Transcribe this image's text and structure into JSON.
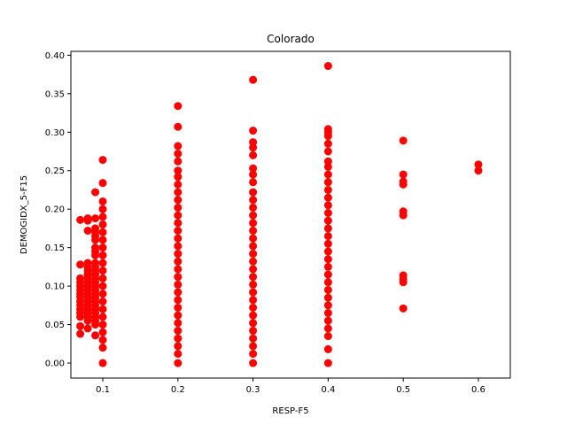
{
  "chart_data": {
    "type": "scatter",
    "title": "Colorado",
    "xlabel": "RESP-F5",
    "ylabel": "DEMOGIDX_5-F15",
    "xlim": [
      0.0575,
      0.6425
    ],
    "ylim": [
      -0.0195,
      0.405
    ],
    "xticks": [
      0.1,
      0.2,
      0.3,
      0.4,
      0.5,
      0.6
    ],
    "xtick_labels": [
      "0.1",
      "0.2",
      "0.3",
      "0.4",
      "0.5",
      "0.6"
    ],
    "yticks": [
      0.0,
      0.05,
      0.1,
      0.15,
      0.2,
      0.25,
      0.3,
      0.35,
      0.4
    ],
    "ytick_labels": [
      "0.00",
      "0.05",
      "0.10",
      "0.15",
      "0.20",
      "0.25",
      "0.30",
      "0.35",
      "0.40"
    ],
    "grid": false,
    "marker_color": "#ff0000",
    "series": [
      {
        "points": [
          [
            0.07,
            0.038
          ],
          [
            0.07,
            0.048
          ],
          [
            0.07,
            0.06
          ],
          [
            0.07,
            0.065
          ],
          [
            0.07,
            0.07
          ],
          [
            0.07,
            0.075
          ],
          [
            0.07,
            0.08
          ],
          [
            0.07,
            0.086
          ],
          [
            0.07,
            0.09
          ],
          [
            0.07,
            0.095
          ],
          [
            0.07,
            0.1
          ],
          [
            0.07,
            0.105
          ],
          [
            0.07,
            0.11
          ],
          [
            0.07,
            0.128
          ],
          [
            0.07,
            0.186
          ],
          [
            0.08,
            0.045
          ],
          [
            0.08,
            0.055
          ],
          [
            0.08,
            0.06
          ],
          [
            0.08,
            0.065
          ],
          [
            0.08,
            0.07
          ],
          [
            0.08,
            0.075
          ],
          [
            0.08,
            0.08
          ],
          [
            0.08,
            0.085
          ],
          [
            0.08,
            0.09
          ],
          [
            0.08,
            0.095
          ],
          [
            0.08,
            0.1
          ],
          [
            0.08,
            0.105
          ],
          [
            0.08,
            0.11
          ],
          [
            0.08,
            0.115
          ],
          [
            0.08,
            0.12
          ],
          [
            0.08,
            0.125
          ],
          [
            0.08,
            0.13
          ],
          [
            0.08,
            0.172
          ],
          [
            0.08,
            0.185
          ],
          [
            0.08,
            0.188
          ],
          [
            0.09,
            0.036
          ],
          [
            0.09,
            0.05
          ],
          [
            0.09,
            0.055
          ],
          [
            0.09,
            0.06
          ],
          [
            0.09,
            0.065
          ],
          [
            0.09,
            0.07
          ],
          [
            0.09,
            0.075
          ],
          [
            0.09,
            0.08
          ],
          [
            0.09,
            0.085
          ],
          [
            0.09,
            0.09
          ],
          [
            0.09,
            0.095
          ],
          [
            0.09,
            0.1
          ],
          [
            0.09,
            0.105
          ],
          [
            0.09,
            0.11
          ],
          [
            0.09,
            0.115
          ],
          [
            0.09,
            0.12
          ],
          [
            0.09,
            0.125
          ],
          [
            0.09,
            0.13
          ],
          [
            0.09,
            0.14
          ],
          [
            0.09,
            0.145
          ],
          [
            0.09,
            0.15
          ],
          [
            0.09,
            0.16
          ],
          [
            0.09,
            0.165
          ],
          [
            0.09,
            0.17
          ],
          [
            0.09,
            0.175
          ],
          [
            0.09,
            0.188
          ],
          [
            0.09,
            0.222
          ],
          [
            0.1,
            0.0
          ],
          [
            0.1,
            0.02
          ],
          [
            0.1,
            0.03
          ],
          [
            0.1,
            0.04
          ],
          [
            0.1,
            0.05
          ],
          [
            0.1,
            0.06
          ],
          [
            0.1,
            0.07
          ],
          [
            0.1,
            0.08
          ],
          [
            0.1,
            0.09
          ],
          [
            0.1,
            0.1
          ],
          [
            0.1,
            0.11
          ],
          [
            0.1,
            0.12
          ],
          [
            0.1,
            0.13
          ],
          [
            0.1,
            0.14
          ],
          [
            0.1,
            0.15
          ],
          [
            0.1,
            0.16
          ],
          [
            0.1,
            0.17
          ],
          [
            0.1,
            0.18
          ],
          [
            0.1,
            0.19
          ],
          [
            0.1,
            0.2
          ],
          [
            0.1,
            0.21
          ],
          [
            0.1,
            0.234
          ],
          [
            0.1,
            0.264
          ],
          [
            0.2,
            0.0
          ],
          [
            0.2,
            0.012
          ],
          [
            0.2,
            0.022
          ],
          [
            0.2,
            0.032
          ],
          [
            0.2,
            0.042
          ],
          [
            0.2,
            0.052
          ],
          [
            0.2,
            0.062
          ],
          [
            0.2,
            0.072
          ],
          [
            0.2,
            0.082
          ],
          [
            0.2,
            0.092
          ],
          [
            0.2,
            0.102
          ],
          [
            0.2,
            0.112
          ],
          [
            0.2,
            0.122
          ],
          [
            0.2,
            0.132
          ],
          [
            0.2,
            0.142
          ],
          [
            0.2,
            0.152
          ],
          [
            0.2,
            0.162
          ],
          [
            0.2,
            0.172
          ],
          [
            0.2,
            0.182
          ],
          [
            0.2,
            0.192
          ],
          [
            0.2,
            0.202
          ],
          [
            0.2,
            0.212
          ],
          [
            0.2,
            0.222
          ],
          [
            0.2,
            0.232
          ],
          [
            0.2,
            0.242
          ],
          [
            0.2,
            0.25
          ],
          [
            0.2,
            0.262
          ],
          [
            0.2,
            0.272
          ],
          [
            0.2,
            0.282
          ],
          [
            0.2,
            0.307
          ],
          [
            0.2,
            0.334
          ],
          [
            0.3,
            0.0
          ],
          [
            0.3,
            0.012
          ],
          [
            0.3,
            0.022
          ],
          [
            0.3,
            0.032
          ],
          [
            0.3,
            0.042
          ],
          [
            0.3,
            0.052
          ],
          [
            0.3,
            0.062
          ],
          [
            0.3,
            0.072
          ],
          [
            0.3,
            0.082
          ],
          [
            0.3,
            0.092
          ],
          [
            0.3,
            0.102
          ],
          [
            0.3,
            0.112
          ],
          [
            0.3,
            0.122
          ],
          [
            0.3,
            0.132
          ],
          [
            0.3,
            0.142
          ],
          [
            0.3,
            0.152
          ],
          [
            0.3,
            0.162
          ],
          [
            0.3,
            0.172
          ],
          [
            0.3,
            0.182
          ],
          [
            0.3,
            0.192
          ],
          [
            0.3,
            0.202
          ],
          [
            0.3,
            0.212
          ],
          [
            0.3,
            0.222
          ],
          [
            0.3,
            0.235
          ],
          [
            0.3,
            0.245
          ],
          [
            0.3,
            0.253
          ],
          [
            0.3,
            0.27
          ],
          [
            0.3,
            0.28
          ],
          [
            0.3,
            0.287
          ],
          [
            0.3,
            0.302
          ],
          [
            0.3,
            0.368
          ],
          [
            0.4,
            0.0
          ],
          [
            0.4,
            0.018
          ],
          [
            0.4,
            0.035
          ],
          [
            0.4,
            0.045
          ],
          [
            0.4,
            0.055
          ],
          [
            0.4,
            0.065
          ],
          [
            0.4,
            0.075
          ],
          [
            0.4,
            0.085
          ],
          [
            0.4,
            0.095
          ],
          [
            0.4,
            0.105
          ],
          [
            0.4,
            0.115
          ],
          [
            0.4,
            0.125
          ],
          [
            0.4,
            0.135
          ],
          [
            0.4,
            0.145
          ],
          [
            0.4,
            0.155
          ],
          [
            0.4,
            0.165
          ],
          [
            0.4,
            0.175
          ],
          [
            0.4,
            0.185
          ],
          [
            0.4,
            0.195
          ],
          [
            0.4,
            0.205
          ],
          [
            0.4,
            0.215
          ],
          [
            0.4,
            0.225
          ],
          [
            0.4,
            0.235
          ],
          [
            0.4,
            0.245
          ],
          [
            0.4,
            0.255
          ],
          [
            0.4,
            0.262
          ],
          [
            0.4,
            0.275
          ],
          [
            0.4,
            0.285
          ],
          [
            0.4,
            0.295
          ],
          [
            0.4,
            0.3
          ],
          [
            0.4,
            0.304
          ],
          [
            0.4,
            0.386
          ],
          [
            0.5,
            0.071
          ],
          [
            0.5,
            0.105
          ],
          [
            0.5,
            0.109
          ],
          [
            0.5,
            0.114
          ],
          [
            0.5,
            0.192
          ],
          [
            0.5,
            0.197
          ],
          [
            0.5,
            0.232
          ],
          [
            0.5,
            0.236
          ],
          [
            0.5,
            0.245
          ],
          [
            0.5,
            0.289
          ],
          [
            0.6,
            0.25
          ],
          [
            0.6,
            0.258
          ]
        ]
      }
    ]
  }
}
